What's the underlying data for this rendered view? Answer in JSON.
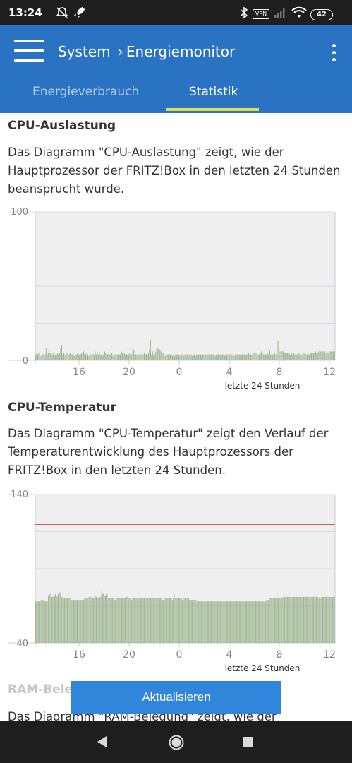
{
  "status_bar": {
    "time": "13:24",
    "vpn": "VPN",
    "battery": "42"
  },
  "app_bar": {
    "title": "System  › Energiemonitor",
    "tabs": [
      "Energieverbrauch",
      "Statistik"
    ],
    "active_tab": "Statistik"
  },
  "sections": [
    {
      "heading": "CPU-Auslastung",
      "description": "Das Diagramm \"CPU-Auslastung\" zeigt, wie der Hauptprozessor der FRITZ!Box in den letzten 24 Stunden beansprucht wurde.",
      "y_top_label": "100",
      "y_bottom_label": "0",
      "x_caption": "letzte 24 Stunden"
    },
    {
      "heading": "CPU-Temperatur",
      "description": "Das Diagramm \"CPU-Temperatur\" zeigt den Verlauf der Temperaturentwicklung des Hauptprozessors der FRITZ!Box in den letzten 24 Stunden.",
      "y_top_label": "140",
      "y_bottom_label": "40",
      "x_caption": "letzte 24 Stunden"
    }
  ],
  "next_section": {
    "heading": "RAM-Belegung",
    "description_start": "Das Diagramm \"RAM-Belegung\" zeigt, wie der"
  },
  "refresh_button": "Aktualisieren",
  "colors": {
    "app_bar": "#2a73c3",
    "tab_indicator": "#dbe14a",
    "bar": "#9bb38d",
    "limit_line": "#d62828",
    "plot_bg": "#efefef",
    "button": "#2f86db"
  },
  "chart_data": [
    {
      "type": "bar",
      "title": "CPU-Auslastung",
      "xlabel": "letzte 24 Stunden",
      "ylabel": "",
      "ylim": [
        0,
        100
      ],
      "x_ticks": [
        "16",
        "20",
        "0",
        "4",
        "8",
        "12"
      ],
      "values": [
        4,
        5,
        4,
        5,
        4,
        3,
        4,
        4,
        5,
        4,
        8,
        4,
        5,
        7,
        5,
        4,
        4,
        5,
        3,
        4,
        4,
        5,
        4,
        5,
        8,
        10,
        4,
        5,
        4,
        4,
        5,
        3,
        4,
        5,
        4,
        4,
        5,
        3,
        4,
        4,
        5,
        4,
        4,
        4,
        5,
        4,
        6,
        5,
        4,
        5,
        4,
        3,
        4,
        4,
        5,
        4,
        4,
        6,
        4,
        5,
        4,
        5,
        4,
        4,
        3,
        4,
        6,
        5,
        4,
        4,
        5,
        4,
        4,
        5,
        3,
        4,
        4,
        4,
        4,
        4,
        4,
        4,
        6,
        5,
        4,
        5,
        4,
        4,
        4,
        4,
        5,
        4,
        4,
        8,
        7,
        4,
        4,
        4,
        4,
        4,
        5,
        4,
        6,
        4,
        5,
        4,
        4,
        4,
        5,
        7,
        14,
        4,
        6,
        4,
        4,
        6,
        8,
        8,
        8,
        7,
        6,
        4,
        5,
        4,
        3,
        4,
        4,
        4,
        4,
        4,
        4,
        3,
        4,
        3,
        4,
        4,
        4,
        4,
        3,
        4,
        4,
        4,
        3,
        4,
        4,
        4,
        3,
        4,
        4,
        4,
        3,
        4,
        4,
        3,
        4,
        4,
        4,
        4,
        4,
        3,
        4,
        4,
        4,
        4,
        4,
        4,
        4,
        4,
        4,
        4,
        4,
        4,
        3,
        4,
        4,
        4,
        4,
        3,
        4,
        4,
        4,
        3,
        4,
        4,
        4,
        4,
        4,
        4,
        4,
        4,
        3,
        4,
        4,
        4,
        4,
        4,
        4,
        4,
        4,
        4,
        4,
        4,
        4,
        4,
        5,
        4,
        4,
        4,
        4,
        5,
        6,
        5,
        4,
        4,
        4,
        5,
        6,
        5,
        4,
        4,
        4,
        4,
        5,
        4,
        7,
        4,
        4,
        4,
        4,
        5,
        4,
        4,
        13,
        6,
        6,
        6,
        6,
        6,
        5,
        5,
        5,
        5,
        5,
        4,
        4,
        5,
        4,
        5,
        4,
        4,
        4,
        4,
        5,
        4,
        4,
        4,
        4,
        5,
        4,
        4,
        4,
        4,
        4,
        5,
        5,
        5,
        5,
        5,
        6,
        5,
        5,
        6,
        7,
        6,
        6,
        6,
        6,
        6,
        5,
        6,
        5,
        6,
        6,
        6,
        6,
        6,
        6
      ]
    },
    {
      "type": "bar",
      "title": "CPU-Temperatur",
      "xlabel": "letzte 24 Stunden",
      "ylabel": "",
      "ylim": [
        40,
        140
      ],
      "x_ticks": [
        "16",
        "20",
        "0",
        "4",
        "8",
        "12"
      ],
      "limit_line": 120,
      "values": [
        68,
        68,
        68,
        68,
        68,
        68,
        69,
        69,
        69,
        69,
        68,
        68,
        68,
        68,
        72,
        72,
        73,
        73,
        71,
        71,
        72,
        72,
        73,
        72,
        71,
        73,
        74,
        74,
        72,
        71,
        71,
        70,
        70,
        70,
        70,
        70,
        70,
        70,
        70,
        70,
        69,
        69,
        69,
        69,
        69,
        69,
        69,
        69,
        69,
        69,
        69,
        69,
        69,
        69,
        70,
        70,
        70,
        70,
        70,
        71,
        71,
        71,
        70,
        70,
        70,
        70,
        72,
        71,
        70,
        70,
        70,
        71,
        71,
        75,
        73,
        73,
        72,
        72,
        73,
        73,
        70,
        70,
        70,
        70,
        70,
        70,
        70,
        69,
        69,
        70,
        70,
        70,
        70,
        70,
        70,
        70,
        70,
        70,
        70,
        70,
        71,
        71,
        71,
        70,
        70,
        70,
        69,
        70,
        70,
        70,
        70,
        70,
        70,
        70,
        70,
        70,
        70,
        70,
        70,
        70,
        70,
        70,
        70,
        70,
        70,
        70,
        70,
        70,
        70,
        70,
        70,
        70,
        70,
        70,
        70,
        70,
        70,
        70,
        70,
        70,
        69,
        69,
        69,
        70,
        70,
        70,
        70,
        70,
        70,
        70,
        70,
        69,
        70,
        73,
        70,
        70,
        70,
        70,
        70,
        70,
        70,
        70,
        69,
        69,
        70,
        70,
        70,
        70,
        70,
        70,
        69,
        69,
        69,
        69,
        69,
        69,
        69,
        69,
        68,
        69,
        68,
        68,
        68,
        68,
        68,
        68,
        68,
        68,
        68,
        68,
        68,
        68,
        68,
        68,
        68,
        68,
        68,
        68,
        68,
        68,
        68,
        68,
        68,
        68,
        68,
        68,
        68,
        68,
        68,
        68,
        68,
        68,
        68,
        68,
        68,
        68,
        68,
        68,
        68,
        68,
        68,
        68,
        68,
        68,
        68,
        68,
        68,
        68,
        68,
        68,
        68,
        68,
        68,
        68,
        68,
        68,
        68,
        68,
        68,
        68,
        68,
        68,
        68,
        68,
        68,
        68,
        68,
        68,
        68,
        68,
        68,
        68,
        68,
        68,
        68,
        69,
        69,
        69,
        70,
        70,
        70,
        70,
        70,
        70,
        70,
        70,
        70,
        70,
        70,
        70,
        70,
        70,
        70,
        71,
        71,
        71,
        71,
        71,
        71,
        71,
        71,
        71,
        71,
        71,
        71,
        71,
        71,
        71,
        71,
        71,
        71,
        71,
        71,
        71,
        71,
        71,
        71,
        71,
        71,
        71,
        71,
        71,
        71,
        71,
        71,
        71,
        71,
        71,
        71,
        71,
        71,
        71,
        71,
        70,
        70,
        70,
        71,
        71,
        71,
        71,
        71,
        71,
        71,
        71,
        71,
        71,
        71,
        71,
        71,
        71,
        71
      ]
    }
  ]
}
